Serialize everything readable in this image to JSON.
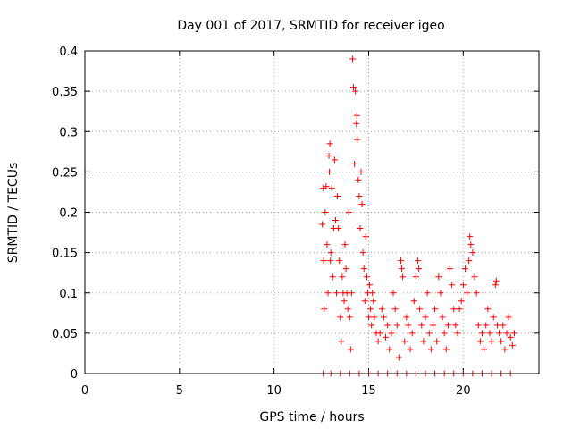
{
  "chart_data": {
    "type": "scatter",
    "title": "Day 001 of 2017, SRMTID for receiver igeo",
    "xlabel": "GPS time / hours",
    "ylabel": "SRMTID / TECUs",
    "xlim": [
      0,
      24
    ],
    "ylim": [
      0,
      0.4
    ],
    "x_ticks": [
      0,
      5,
      10,
      15,
      20
    ],
    "x_tick_labels": [
      "0",
      "5",
      "10",
      "15",
      "20"
    ],
    "y_ticks": [
      0,
      0.05,
      0.1,
      0.15,
      0.2,
      0.25,
      0.3,
      0.35,
      0.4
    ],
    "y_tick_labels": [
      "0",
      "0.05",
      "0.1",
      "0.15",
      "0.2",
      "0.25",
      "0.3",
      "0.35",
      "0.4"
    ],
    "grid": true,
    "marker": "+",
    "color": "#ff0000",
    "series": [
      {
        "name": "SRMTID",
        "points": [
          [
            12.55,
            0.185
          ],
          [
            12.6,
            0.23
          ],
          [
            12.62,
            0.14
          ],
          [
            12.65,
            0.08
          ],
          [
            12.7,
            0.2
          ],
          [
            12.75,
            0.232
          ],
          [
            12.8,
            0.16
          ],
          [
            12.85,
            0.1
          ],
          [
            12.9,
            0.27
          ],
          [
            12.92,
            0.25
          ],
          [
            12.95,
            0.285
          ],
          [
            12.98,
            0.14
          ],
          [
            13.0,
            0.15
          ],
          [
            13.05,
            0.23
          ],
          [
            13.1,
            0.12
          ],
          [
            13.15,
            0.18
          ],
          [
            13.2,
            0.265
          ],
          [
            13.25,
            0.19
          ],
          [
            13.3,
            0.1
          ],
          [
            13.35,
            0.22
          ],
          [
            13.4,
            0.18
          ],
          [
            13.45,
            0.14
          ],
          [
            13.5,
            0.07
          ],
          [
            13.55,
            0.04
          ],
          [
            13.6,
            0.12
          ],
          [
            13.65,
            0.1
          ],
          [
            13.7,
            0.09
          ],
          [
            13.75,
            0.16
          ],
          [
            13.8,
            0.13
          ],
          [
            13.85,
            0.1
          ],
          [
            13.9,
            0.08
          ],
          [
            13.95,
            0.2
          ],
          [
            14.0,
            0.07
          ],
          [
            14.05,
            0.03
          ],
          [
            14.1,
            0.1
          ],
          [
            14.15,
            0.39
          ],
          [
            14.2,
            0.355
          ],
          [
            14.25,
            0.26
          ],
          [
            14.3,
            0.35
          ],
          [
            14.35,
            0.31
          ],
          [
            14.38,
            0.32
          ],
          [
            14.4,
            0.29
          ],
          [
            14.45,
            0.24
          ],
          [
            14.5,
            0.22
          ],
          [
            14.55,
            0.18
          ],
          [
            14.6,
            0.25
          ],
          [
            14.65,
            0.21
          ],
          [
            14.7,
            0.15
          ],
          [
            14.75,
            0.13
          ],
          [
            14.8,
            0.09
          ],
          [
            14.85,
            0.17
          ],
          [
            14.9,
            0.12
          ],
          [
            14.95,
            0.1
          ],
          [
            15.0,
            0.07
          ],
          [
            15.05,
            0.11
          ],
          [
            15.1,
            0.08
          ],
          [
            15.15,
            0.06
          ],
          [
            15.2,
            0.1
          ],
          [
            15.25,
            0.09
          ],
          [
            15.3,
            0.07
          ],
          [
            15.4,
            0.05
          ],
          [
            15.5,
            0.04
          ],
          [
            15.6,
            0.05
          ],
          [
            15.7,
            0.08
          ],
          [
            15.8,
            0.07
          ],
          [
            15.9,
            0.045
          ],
          [
            16.0,
            0.06
          ],
          [
            16.1,
            0.03
          ],
          [
            16.2,
            0.05
          ],
          [
            16.3,
            0.1
          ],
          [
            16.4,
            0.08
          ],
          [
            16.5,
            0.06
          ],
          [
            16.6,
            0.02
          ],
          [
            16.7,
            0.14
          ],
          [
            16.75,
            0.13
          ],
          [
            16.8,
            0.12
          ],
          [
            16.9,
            0.04
          ],
          [
            17.0,
            0.07
          ],
          [
            17.1,
            0.06
          ],
          [
            17.2,
            0.03
          ],
          [
            17.3,
            0.05
          ],
          [
            17.4,
            0.09
          ],
          [
            17.5,
            0.12
          ],
          [
            17.6,
            0.14
          ],
          [
            17.65,
            0.13
          ],
          [
            17.7,
            0.08
          ],
          [
            17.8,
            0.06
          ],
          [
            17.9,
            0.04
          ],
          [
            18.0,
            0.07
          ],
          [
            18.1,
            0.1
          ],
          [
            18.2,
            0.05
          ],
          [
            18.3,
            0.03
          ],
          [
            18.4,
            0.06
          ],
          [
            18.5,
            0.08
          ],
          [
            18.6,
            0.04
          ],
          [
            18.7,
            0.12
          ],
          [
            18.8,
            0.1
          ],
          [
            18.9,
            0.07
          ],
          [
            19.0,
            0.05
          ],
          [
            19.1,
            0.03
          ],
          [
            19.2,
            0.06
          ],
          [
            19.3,
            0.13
          ],
          [
            19.4,
            0.11
          ],
          [
            19.5,
            0.08
          ],
          [
            19.6,
            0.06
          ],
          [
            19.7,
            0.05
          ],
          [
            19.8,
            0.08
          ],
          [
            19.9,
            0.09
          ],
          [
            20.0,
            0.11
          ],
          [
            20.1,
            0.13
          ],
          [
            20.2,
            0.1
          ],
          [
            20.3,
            0.14
          ],
          [
            20.35,
            0.17
          ],
          [
            20.4,
            0.16
          ],
          [
            20.5,
            0.15
          ],
          [
            20.6,
            0.12
          ],
          [
            20.7,
            0.1
          ],
          [
            20.8,
            0.06
          ],
          [
            20.9,
            0.04
          ],
          [
            21.0,
            0.05
          ],
          [
            21.1,
            0.03
          ],
          [
            21.2,
            0.06
          ],
          [
            21.3,
            0.08
          ],
          [
            21.4,
            0.05
          ],
          [
            21.5,
            0.04
          ],
          [
            21.6,
            0.07
          ],
          [
            21.7,
            0.11
          ],
          [
            21.75,
            0.115
          ],
          [
            21.8,
            0.06
          ],
          [
            21.9,
            0.05
          ],
          [
            22.0,
            0.04
          ],
          [
            22.1,
            0.06
          ],
          [
            22.2,
            0.03
          ],
          [
            22.3,
            0.05
          ],
          [
            22.4,
            0.07
          ],
          [
            22.5,
            0.045
          ],
          [
            22.6,
            0.035
          ],
          [
            22.7,
            0.05
          ],
          [
            12.6,
            0.0
          ],
          [
            13.0,
            0.0
          ],
          [
            13.5,
            0.0
          ],
          [
            14.0,
            0.0
          ],
          [
            14.5,
            0.0
          ],
          [
            15.0,
            0.0
          ],
          [
            15.5,
            0.0
          ],
          [
            16.0,
            0.0
          ],
          [
            16.5,
            0.0
          ],
          [
            17.0,
            0.0
          ],
          [
            17.5,
            0.0
          ],
          [
            18.0,
            0.0
          ],
          [
            18.5,
            0.0
          ],
          [
            19.0,
            0.0
          ],
          [
            19.5,
            0.0
          ],
          [
            20.0,
            0.0
          ],
          [
            20.5,
            0.0
          ],
          [
            21.0,
            0.0
          ],
          [
            21.5,
            0.0
          ],
          [
            22.0,
            0.0
          ],
          [
            22.5,
            0.0
          ]
        ]
      }
    ]
  }
}
